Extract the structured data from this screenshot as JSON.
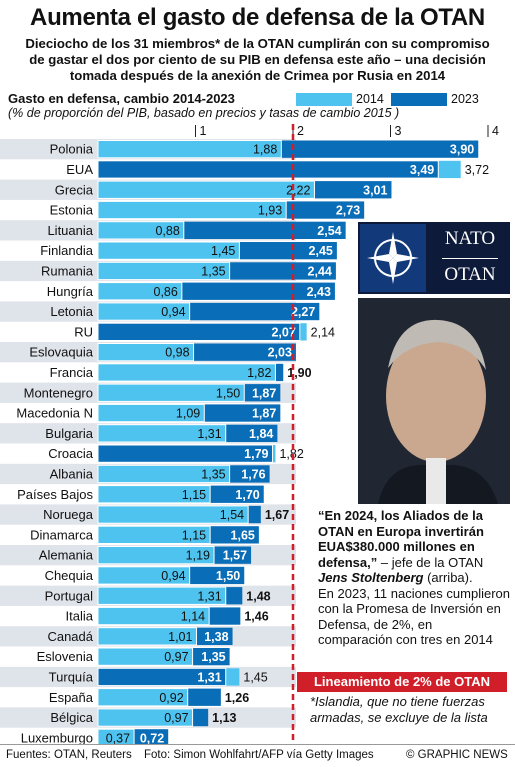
{
  "header": {
    "title": "Aumenta el gasto de defensa de la OTAN",
    "subtitle_lines": [
      "Dieciocho de los 31 miembros* de la OTAN cumplirán con su compromiso",
      "de gastar el dos por ciento de su PIB en defensa este año – una decisión",
      "tomada después de la anexión de Crimea por Rusia en 2014"
    ]
  },
  "legend": {
    "a": "2014",
    "b": "2023"
  },
  "colors": {
    "y2014": "#4fc3ef",
    "y2023": "#0a6db7",
    "guideline": "#d11f2a",
    "row_alt": "#dfe3ea"
  },
  "logo": {
    "line1": "NATO",
    "line2": "OTAN"
  },
  "quote": {
    "text": "“En 2024, los Aliados de la OTAN en Europa invertirán EUA$380.000 millones en defensa,”",
    "attribution_pre": "– jefe de la OTAN",
    "name": "Jens Stoltenberg",
    "attribution_post": "(arriba).",
    "detail": "En 2023, 11 naciones cumplieron con la Promesa de Inversión en Defensa, de 2%, en comparación con tres en 2014"
  },
  "guideline_label": "Lineamiento de 2% de OTAN",
  "footnote": "*Islandia, que no tiene fuerzas armadas, se excluye de la lista",
  "footer": {
    "sources": "Fuentes: OTAN, Reuters",
    "photo": "Foto:  Simon Wohlfahrt/AFP vía Getty Images",
    "credit": "© GRAPHIC NEWS"
  },
  "chart_data": {
    "type": "bar",
    "title": "Gasto en defensa, cambio 2014-2023",
    "subtitle": "(% de proporción del PIB, basado en  precios y tasas de cambio 2015 )",
    "xlim": [
      0,
      4
    ],
    "ticks": [
      "1",
      "2",
      "3",
      "4"
    ],
    "reference_line": 2,
    "series": [
      {
        "name": "2014",
        "color": "#4fc3ef"
      },
      {
        "name": "2023",
        "color": "#0a6db7"
      }
    ],
    "categories": [
      "Polonia",
      "EUA",
      "Grecia",
      "Estonia",
      "Lituania",
      "Finlandia",
      "Rumania",
      "Hungría",
      "Letonia",
      "RU",
      "Eslovaquia",
      "Francia",
      "Montenegro",
      "Macedonia N",
      "Bulgaria",
      "Croacia",
      "Albania",
      "Países Bajos",
      "Noruega",
      "Dinamarca",
      "Alemania",
      "Chequia",
      "Portugal",
      "Italia",
      "Canadá",
      "Eslovenia",
      "Turquía",
      "España",
      "Bélgica",
      "Luxemburgo"
    ],
    "values_2014": [
      1.88,
      3.72,
      2.22,
      1.93,
      0.88,
      1.45,
      1.35,
      0.86,
      0.94,
      2.14,
      0.98,
      1.82,
      1.5,
      1.09,
      1.31,
      1.82,
      1.35,
      1.15,
      1.54,
      1.15,
      1.19,
      0.94,
      1.31,
      1.14,
      1.01,
      0.97,
      1.45,
      0.92,
      0.97,
      0.37
    ],
    "values_2023": [
      3.9,
      3.49,
      3.01,
      2.73,
      2.54,
      2.45,
      2.44,
      2.43,
      2.27,
      2.07,
      2.03,
      1.9,
      1.87,
      1.87,
      1.84,
      1.79,
      1.76,
      1.7,
      1.67,
      1.65,
      1.57,
      1.5,
      1.48,
      1.46,
      1.38,
      1.35,
      1.31,
      1.26,
      1.13,
      0.72
    ],
    "labels_2014": [
      "1,88",
      "3,72",
      "2,22",
      "1,93",
      "0,88",
      "1,45",
      "1,35",
      "0,86",
      "0,94",
      "2,14",
      "0,98",
      "1,82",
      "1,50",
      "1,09",
      "1,31",
      "1,82",
      "1,35",
      "1,15",
      "1,54",
      "1,15",
      "1,19",
      "0,94",
      "1,31",
      "1,14",
      "1,01",
      "0,97",
      "1,45",
      "0,92",
      "0,97",
      "0,37"
    ],
    "labels_2023": [
      "3,90",
      "3,49",
      "3,01",
      "2,73",
      "2,54",
      "2,45",
      "2,44",
      "2,43",
      "2,27",
      "2,07",
      "2,03",
      "1,90",
      "1,87",
      "1,87",
      "1,84",
      "1,79",
      "1,76",
      "1,70",
      "1,67",
      "1,65",
      "1,57",
      "1,50",
      "1,48",
      "1,46",
      "1,38",
      "1,35",
      "1,31",
      "1,26",
      "1,13",
      "0,72"
    ]
  }
}
